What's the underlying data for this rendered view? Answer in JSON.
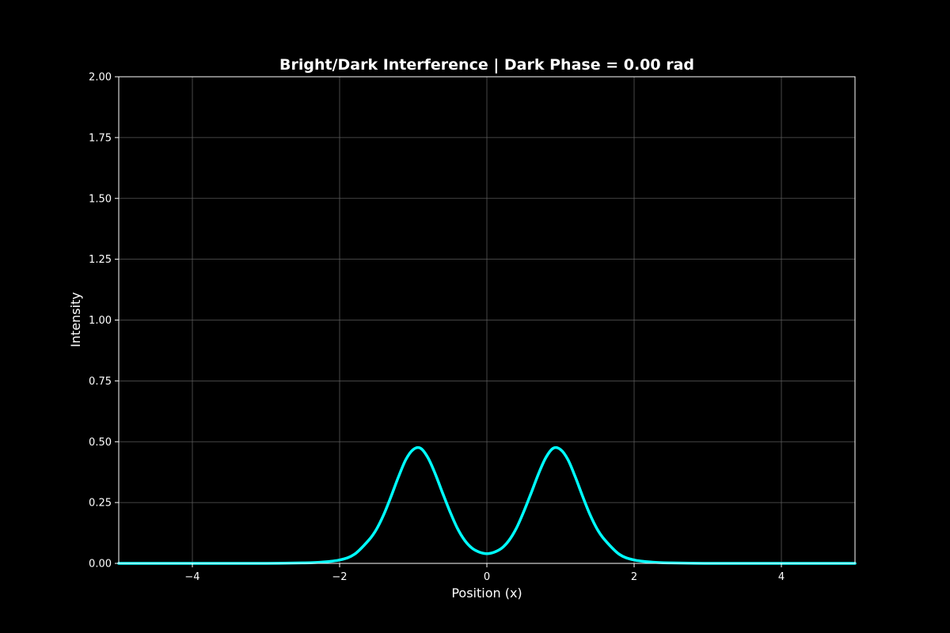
{
  "chart_data": {
    "type": "line",
    "title": "Bright/Dark Interference | Dark Phase = 0.00 rad",
    "xlabel": "Position (x)",
    "ylabel": "Intensity",
    "xlim": [
      -5,
      5
    ],
    "ylim": [
      0,
      2
    ],
    "xticks": [
      -4,
      -2,
      0,
      2,
      4
    ],
    "xtick_labels": [
      "−4",
      "−2",
      "0",
      "2",
      "4"
    ],
    "yticks": [
      0,
      0.25,
      0.5,
      0.75,
      1.0,
      1.25,
      1.5,
      1.75,
      2.0
    ],
    "ytick_labels": [
      "0.00",
      "0.25",
      "0.50",
      "0.75",
      "1.00",
      "1.25",
      "1.50",
      "1.75",
      "2.00"
    ],
    "grid": true,
    "colors": {
      "background": "#000000",
      "line": "#00ffff",
      "axes": "#ffffff",
      "grid": "#5a5a5a"
    },
    "series": [
      {
        "x": [
          -5.0,
          -4.5,
          -4.0,
          -3.5,
          -3.0,
          -2.5,
          -2.25,
          -2.0,
          -1.8,
          -1.6,
          -1.5,
          -1.4,
          -1.3,
          -1.2,
          -1.1,
          -1.0,
          -0.9,
          -0.8,
          -0.7,
          -0.6,
          -0.5,
          -0.4,
          -0.3,
          -0.2,
          -0.1,
          0.0,
          0.1,
          0.2,
          0.3,
          0.4,
          0.5,
          0.6,
          0.7,
          0.8,
          0.9,
          1.0,
          1.1,
          1.2,
          1.3,
          1.4,
          1.5,
          1.6,
          1.8,
          2.0,
          2.25,
          2.5,
          3.0,
          3.5,
          4.0,
          4.5,
          5.0
        ],
        "y": [
          0.0,
          0.0,
          0.0,
          0.0,
          0.0,
          0.002,
          0.005,
          0.014,
          0.037,
          0.097,
          0.14,
          0.201,
          0.276,
          0.356,
          0.427,
          0.468,
          0.473,
          0.434,
          0.367,
          0.288,
          0.212,
          0.144,
          0.094,
          0.062,
          0.046,
          0.04,
          0.046,
          0.062,
          0.094,
          0.144,
          0.212,
          0.288,
          0.367,
          0.434,
          0.473,
          0.468,
          0.427,
          0.356,
          0.276,
          0.201,
          0.14,
          0.097,
          0.037,
          0.014,
          0.005,
          0.002,
          0.0,
          0.0,
          0.0,
          0.0,
          0.0
        ]
      }
    ]
  }
}
